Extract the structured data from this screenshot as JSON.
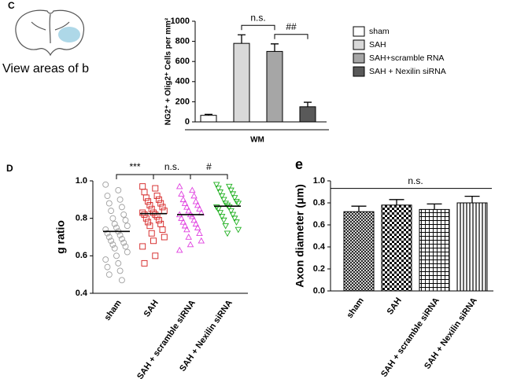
{
  "chart_data": [
    {
      "type": "bar",
      "label": "C",
      "image_caption": "View areas of b",
      "ylabel": "NG2⁺ + Olig2⁺ Cells per mm²",
      "xlabel": "WM",
      "categories": [
        "sham",
        "SAH",
        "SAH+scramble RNA",
        "SAH + Nexilin siRNA"
      ],
      "values": [
        65,
        780,
        700,
        150
      ],
      "errors": [
        10,
        85,
        75,
        45
      ],
      "colors": [
        "#ffffff",
        "#d9d9d9",
        "#a6a6a6",
        "#595959"
      ],
      "ylim": [
        0,
        1000
      ],
      "yticks": [
        0,
        200,
        400,
        600,
        800,
        1000
      ],
      "legend": "right",
      "annotations": [
        {
          "text": "n.s.",
          "between": [
            1,
            2
          ]
        },
        {
          "text": "##",
          "between": [
            2,
            3
          ]
        }
      ]
    },
    {
      "type": "strip",
      "label": "D",
      "ylabel": "g ratio",
      "categories": [
        "sham",
        "SAH",
        "SAH + scramble siRNA",
        "SAH + Nexilin siRNA"
      ],
      "series": [
        {
          "color": "#a0a0a0",
          "marker": "circle",
          "mean": 0.73,
          "values": [
            0.98,
            0.95,
            0.92,
            0.9,
            0.88,
            0.86,
            0.84,
            0.82,
            0.8,
            0.79,
            0.77,
            0.76,
            0.75,
            0.74,
            0.73,
            0.72,
            0.71,
            0.7,
            0.69,
            0.68,
            0.67,
            0.66,
            0.65,
            0.64,
            0.62,
            0.6,
            0.58,
            0.56,
            0.54,
            0.52,
            0.5,
            0.47
          ]
        },
        {
          "color": "#d42020",
          "marker": "square",
          "mean": 0.825,
          "values": [
            0.97,
            0.96,
            0.94,
            0.92,
            0.91,
            0.9,
            0.89,
            0.88,
            0.87,
            0.86,
            0.85,
            0.84,
            0.83,
            0.83,
            0.82,
            0.82,
            0.81,
            0.8,
            0.79,
            0.78,
            0.77,
            0.76,
            0.74,
            0.72,
            0.7,
            0.68,
            0.65,
            0.6,
            0.56
          ]
        },
        {
          "color": "#e040e0",
          "marker": "triangle",
          "mean": 0.82,
          "values": [
            0.97,
            0.95,
            0.93,
            0.92,
            0.9,
            0.89,
            0.88,
            0.87,
            0.86,
            0.85,
            0.84,
            0.83,
            0.82,
            0.82,
            0.81,
            0.8,
            0.79,
            0.78,
            0.77,
            0.76,
            0.75,
            0.74,
            0.72,
            0.7,
            0.68,
            0.66,
            0.63
          ]
        },
        {
          "color": "#20b020",
          "marker": "triangle-down",
          "mean": 0.865,
          "values": [
            0.98,
            0.97,
            0.96,
            0.95,
            0.94,
            0.93,
            0.92,
            0.91,
            0.9,
            0.89,
            0.88,
            0.88,
            0.87,
            0.86,
            0.86,
            0.85,
            0.84,
            0.83,
            0.82,
            0.81,
            0.8,
            0.79,
            0.78,
            0.76,
            0.74,
            0.72
          ]
        }
      ],
      "ylim": [
        0.4,
        1
      ],
      "yticks": [
        0.4,
        0.6,
        0.8,
        {
          "value": 1,
          "label": "1.0"
        }
      ],
      "annotations": [
        {
          "text": "***",
          "between": [
            0,
            1
          ]
        },
        {
          "text": "n.s.",
          "between": [
            1,
            2
          ]
        },
        {
          "text": "#",
          "between": [
            2,
            3
          ]
        }
      ]
    },
    {
      "type": "bar",
      "label": "e",
      "ylabel": "Axon diameter (μm)",
      "categories": [
        "sham",
        "SAH",
        "SAH + scramble siRNA",
        "SAH + Nexilin siRNA"
      ],
      "values": [
        0.72,
        0.78,
        0.74,
        0.8
      ],
      "errors": [
        0.05,
        0.05,
        0.05,
        0.06
      ],
      "patterns": [
        "crosshatch",
        "checker",
        "grid",
        "vstripe"
      ],
      "ylim": [
        0,
        1
      ],
      "yticks": [
        {
          "value": 0,
          "label": "0.0"
        },
        0.2,
        0.4,
        0.6,
        0.8,
        {
          "value": 1,
          "label": "1.0"
        }
      ],
      "annotations": [
        {
          "text": "n.s.",
          "between": [
            0,
            3
          ]
        }
      ]
    }
  ]
}
